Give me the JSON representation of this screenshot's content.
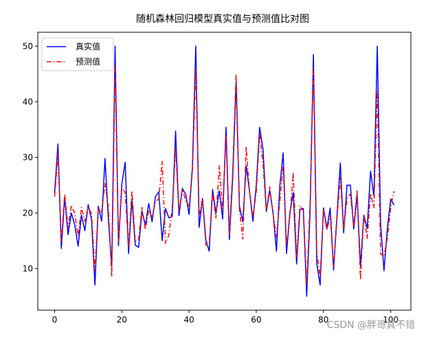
{
  "watermark": "CSDN @胖哥真不错",
  "chart_data": {
    "type": "line",
    "title": "随机森林回归模型真实值与预测值比对图",
    "xlabel": "",
    "ylabel": "",
    "xlim": [
      -5,
      106
    ],
    "ylim": [
      2.5,
      52.5
    ],
    "xticks": [
      0,
      20,
      40,
      60,
      80,
      100
    ],
    "yticks": [
      10,
      20,
      30,
      40,
      50
    ],
    "legend_position": "upper-left",
    "series": [
      {
        "name": "真实值",
        "color": "#0000ff",
        "style": "solid",
        "values": [
          23.6,
          32.4,
          13.6,
          22.8,
          16.1,
          20.0,
          17.8,
          14.0,
          19.6,
          16.8,
          21.5,
          18.7,
          7.0,
          21.2,
          18.5,
          29.8,
          18.8,
          10.4,
          50.0,
          14.1,
          25.2,
          29.1,
          12.7,
          22.4,
          14.2,
          13.8,
          20.3,
          17.8,
          21.7,
          18.4,
          22.9,
          23.8,
          15.0,
          20.8,
          19.1,
          19.4,
          34.7,
          19.5,
          24.4,
          23.4,
          19.7,
          28.2,
          50.0,
          17.4,
          22.6,
          15.1,
          13.1,
          24.2,
          19.9,
          24.0,
          18.9,
          35.4,
          15.2,
          26.5,
          43.5,
          21.2,
          18.4,
          28.5,
          23.9,
          18.5,
          25.0,
          35.4,
          31.5,
          20.2,
          24.1,
          20.0,
          13.1,
          24.8,
          30.8,
          12.7,
          20.0,
          23.7,
          10.8,
          20.6,
          20.8,
          5.0,
          20.1,
          48.5,
          10.9,
          7.0,
          20.9,
          17.2,
          20.9,
          9.7,
          19.4,
          29.0,
          16.4,
          25.0,
          25.0,
          17.1,
          23.2,
          10.4,
          19.6,
          17.2,
          27.5,
          23.0,
          50.0,
          17.9,
          9.6,
          17.2,
          22.5,
          21.4
        ]
      },
      {
        "name": "预测值",
        "color": "#ff0000",
        "style": "dashdot",
        "values": [
          22.9,
          30.6,
          14.9,
          23.4,
          17.3,
          21.4,
          19.9,
          15.8,
          21.0,
          18.5,
          21.1,
          19.8,
          9.5,
          20.9,
          20.1,
          25.3,
          21.0,
          8.5,
          46.5,
          14.9,
          24.5,
          23.7,
          13.8,
          24.0,
          14.9,
          15.2,
          21.0,
          17.0,
          20.5,
          19.3,
          22.0,
          22.5,
          29.3,
          14.5,
          16.0,
          21.0,
          31.6,
          20.3,
          24.2,
          22.3,
          21.2,
          27.4,
          45.9,
          19.5,
          22.5,
          14.2,
          14.6,
          23.5,
          19.1,
          28.5,
          20.4,
          33.9,
          16.1,
          27.7,
          45.0,
          20.6,
          15.3,
          31.9,
          23.7,
          19.3,
          23.7,
          34.2,
          28.9,
          20.3,
          24.7,
          19.8,
          15.6,
          22.0,
          28.5,
          14.2,
          19.4,
          27.3,
          11.9,
          21.3,
          20.4,
          7.0,
          21.5,
          46.1,
          12.9,
          8.5,
          20.6,
          16.9,
          19.5,
          10.3,
          19.0,
          26.4,
          17.0,
          22.6,
          23.4,
          17.7,
          24.0,
          8.0,
          19.8,
          15.4,
          23.5,
          20.9,
          41.9,
          12.6,
          12.2,
          15.5,
          21.0,
          23.9
        ]
      }
    ]
  }
}
